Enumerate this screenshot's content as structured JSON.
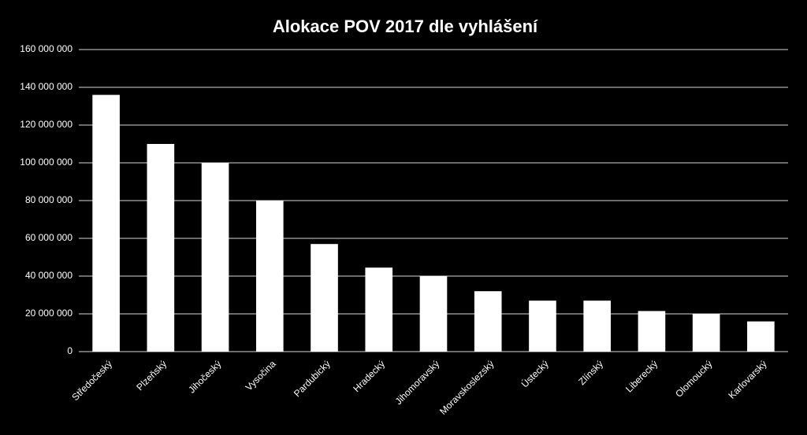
{
  "chart_data": {
    "type": "bar",
    "title": "Alokace POV 2017 dle vyhlášení",
    "categories": [
      "Středočeský",
      "Plzeňský",
      "Jihočeský",
      "Vysočina",
      "Pardubický",
      "Hradecký",
      "Jihomoravský",
      "Moravskoslezský",
      "Ústecký",
      "Zlínský",
      "Liberecký",
      "Olomoucký",
      "Karlovarský"
    ],
    "values": [
      136000000,
      110000000,
      100000000,
      80000000,
      57000000,
      44500000,
      40000000,
      32000000,
      27000000,
      27000000,
      21500000,
      20000000,
      16000000
    ],
    "color": "#ffffff",
    "ylim": [
      0,
      160000000
    ],
    "yticks": [
      0,
      {
        "value": 20000000,
        "label": "20 000 000"
      },
      {
        "value": 40000000,
        "label": "40 000 000"
      },
      {
        "value": 60000000,
        "label": "60 000 000"
      },
      {
        "value": 80000000,
        "label": "80 000 000"
      },
      {
        "value": 100000000,
        "label": "100 000 000"
      },
      {
        "value": 120000000,
        "label": "120 000 000"
      },
      {
        "value": 140000000,
        "label": "140 000 000"
      },
      {
        "value": 160000000,
        "label": "160 000 000"
      }
    ],
    "grid": true
  }
}
